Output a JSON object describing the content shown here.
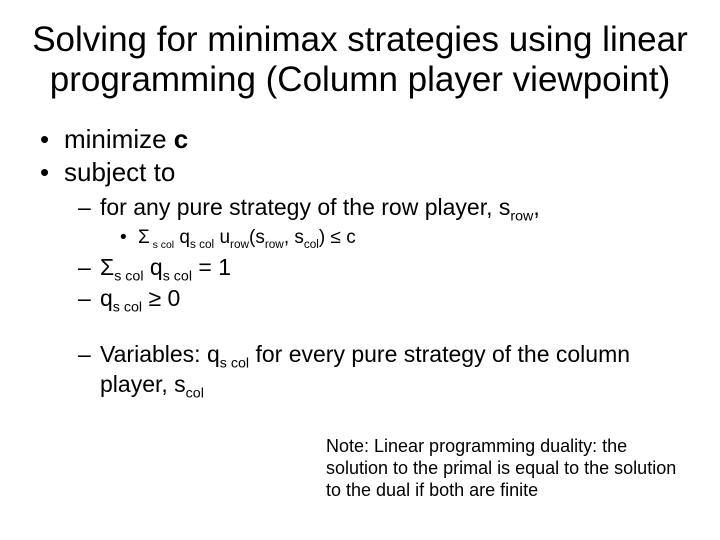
{
  "colors": {
    "background": "#ffffff",
    "text": "#000000"
  },
  "title": {
    "text": "Solving for minimax strategies using linear programming (Column player viewpoint)",
    "fontsize": 35
  },
  "bullets": {
    "l1": [
      "minimize c",
      "subject to"
    ],
    "l2_row": {
      "prefix": "for any pure strategy of the row player, s",
      "row_sub": "row",
      "suffix": ","
    },
    "l3_constraint": {
      "sigma": "Σ",
      "sigma_sub": " s col",
      "q": " q",
      "q_sub": "s col",
      "u": " u",
      "u_sub": "row",
      "open": "(s",
      "row_sub": "row",
      "mid": ", s",
      "col_sub": "col",
      "close": ") ≤ c"
    },
    "l2_sum": {
      "sigma": "Σ",
      "sigma_sub": "s col",
      "q": " q",
      "q_sub": "s col",
      "tail": " = 1"
    },
    "l2_nonneg": {
      "q": "q",
      "q_sub": "s col",
      "tail": " ≥ 0"
    },
    "l2_vars": {
      "pre": "Variables: q",
      "q_sub": "s col",
      "mid": " for every pure strategy of the column player, s",
      "col_sub": "col"
    }
  },
  "note": {
    "text": "Note: Linear programming duality: the solution to the primal is equal to the solution to the dual if both are finite",
    "fontsize": 18
  }
}
